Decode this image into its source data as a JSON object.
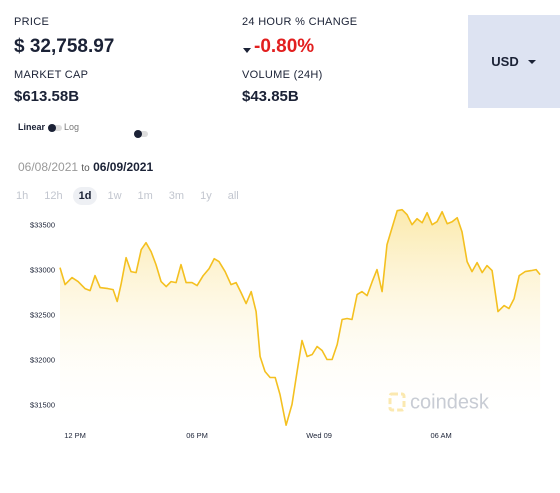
{
  "header": {
    "price_label": "PRICE",
    "price": "$ 32,758.97",
    "change_label": "24 HOUR % CHANGE",
    "change": "-0.80%",
    "market_cap_label": "MARKET CAP",
    "market_cap": "$613.58B",
    "volume_label": "VOLUME (24H)",
    "volume": "$43.85B",
    "currency": "USD"
  },
  "controls": {
    "linear": "Linear",
    "log": "Log",
    "date_from": "06/08/2021",
    "date_to_word": "to",
    "date_to": "06/09/2021",
    "ranges": [
      "1h",
      "12h",
      "1d",
      "1w",
      "1m",
      "3m",
      "1y",
      "all"
    ],
    "watermark": "coindesk"
  },
  "chart_data": {
    "type": "line",
    "color": "#f4c020",
    "x": [
      11.26,
      11.51,
      11.85,
      12.15,
      12.49,
      12.74,
      12.98,
      13.23,
      13.62,
      13.87,
      14.07,
      14.26,
      14.51,
      14.75,
      15.0,
      15.25,
      15.49,
      15.74,
      15.98,
      16.23,
      16.48,
      16.72,
      16.97,
      17.21,
      17.46,
      17.75,
      18.0,
      18.3,
      18.59,
      18.84,
      19.08,
      19.38,
      19.67,
      19.92,
      20.16,
      20.41,
      20.66,
      20.9,
      21.1,
      21.34,
      21.59,
      21.84,
      22.08,
      22.38,
      22.67,
      22.92,
      23.16,
      23.41,
      23.66,
      23.9,
      24.15,
      24.39,
      24.64,
      24.89,
      25.13,
      25.38,
      25.62,
      25.87,
      26.11,
      26.36,
      26.61,
      26.85,
      27.1,
      27.34,
      27.59,
      27.84,
      28.08,
      28.33,
      28.57,
      28.82,
      29.07,
      29.31,
      29.56,
      29.8,
      30.05,
      30.3,
      30.54,
      30.79,
      31.03,
      31.28,
      31.52,
      31.77,
      32.02,
      32.26,
      32.51,
      32.8,
      33.1,
      33.34,
      33.59,
      33.84,
      34.13,
      34.43,
      34.67,
      34.87
    ],
    "values": [
      33033,
      32844,
      32922,
      32878,
      32800,
      32778,
      32944,
      32811,
      32800,
      32789,
      32656,
      32844,
      33144,
      32989,
      32978,
      33233,
      33311,
      33211,
      33067,
      32878,
      32822,
      32878,
      32867,
      33067,
      32867,
      32867,
      32833,
      32944,
      33022,
      33133,
      33100,
      32989,
      32844,
      32867,
      32756,
      32633,
      32767,
      32544,
      32044,
      31878,
      31811,
      31811,
      31622,
      31280,
      31511,
      31878,
      32222,
      32044,
      32067,
      32156,
      32111,
      32011,
      32011,
      32178,
      32456,
      32467,
      32456,
      32733,
      32767,
      32722,
      32878,
      33011,
      32767,
      33289,
      33478,
      33667,
      33678,
      33622,
      33511,
      33578,
      33533,
      33644,
      33511,
      33544,
      33656,
      33522,
      33544,
      33589,
      33433,
      33100,
      32989,
      33089,
      32978,
      33056,
      33000,
      32544,
      32611,
      32578,
      32689,
      32944,
      32989,
      33000,
      33011,
      32956
    ],
    "xlim": [
      11.16,
      35.11
    ],
    "ylim": [
      31260,
      33730
    ],
    "xticks": [
      {
        "value": 12,
        "label": "12 PM"
      },
      {
        "value": 18,
        "label": "06 PM"
      },
      {
        "value": 24,
        "label": "Wed 09"
      },
      {
        "value": 30,
        "label": "06 AM"
      }
    ],
    "yticks": [
      {
        "value": 31500,
        "label": "$31500"
      },
      {
        "value": 32000,
        "label": "$32000"
      },
      {
        "value": 32500,
        "label": "$32500"
      },
      {
        "value": 33000,
        "label": "$33000"
      },
      {
        "value": 33500,
        "label": "$33500"
      }
    ]
  }
}
